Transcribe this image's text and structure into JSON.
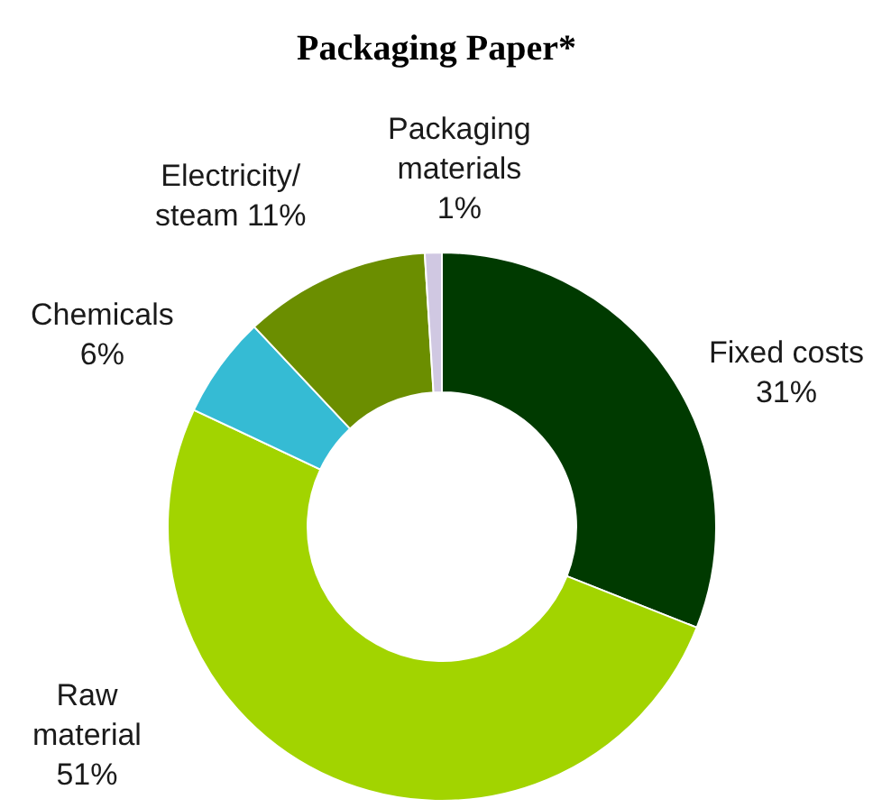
{
  "chart_data": {
    "type": "donut",
    "title": "Packaging Paper*",
    "categories": [
      "Fixed costs",
      "Raw material",
      "Chemicals",
      "Electricity/steam",
      "Packaging materials"
    ],
    "values": [
      31,
      51,
      6,
      11,
      1
    ],
    "colors": [
      "#003a00",
      "#a2d400",
      "#35bbd4",
      "#6b8e00",
      "#d0c8e2"
    ],
    "value_labels": [
      "31%",
      "51%",
      "6%",
      "11%",
      "1%"
    ],
    "legend": false
  }
}
